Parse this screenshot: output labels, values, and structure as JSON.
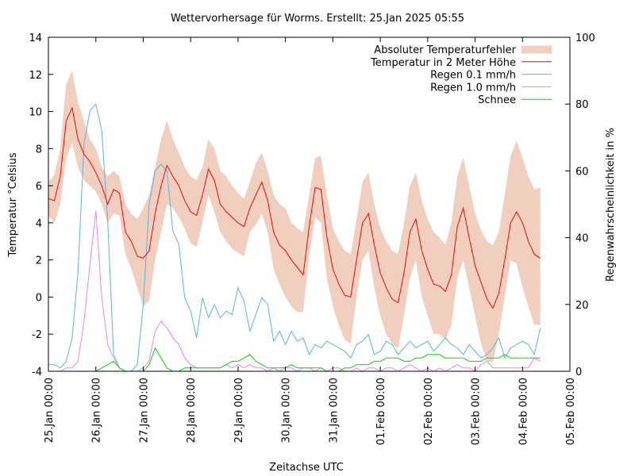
{
  "chart_data": {
    "type": "line",
    "title": "Wettervorhersage für Worms. Erstellt: 25.Jan 2025 05:55",
    "xlabel": "Zeitachse UTC",
    "ylabel": "Temperatur °Celsius",
    "y2label": "Regenwahrscheinlichkeit in %",
    "x_unit": "hours since 25.Jan 00:00 UTC",
    "xlim": [
      0,
      264
    ],
    "ylim": [
      -4,
      14
    ],
    "y2lim": [
      0,
      100
    ],
    "grid": false,
    "legend_position": "top-right",
    "x_ticks": [
      {
        "value": 0,
        "label": "25.Jan 00:00"
      },
      {
        "value": 24,
        "label": "26.Jan 00:00"
      },
      {
        "value": 48,
        "label": "27.Jan 00:00"
      },
      {
        "value": 72,
        "label": "28.Jan 00:00"
      },
      {
        "value": 96,
        "label": "29.Jan 00:00"
      },
      {
        "value": 120,
        "label": "30.Jan 00:00"
      },
      {
        "value": 144,
        "label": "31.Jan 00:00"
      },
      {
        "value": 168,
        "label": "01.Feb 00:00"
      },
      {
        "value": 192,
        "label": "02.Feb 00:00"
      },
      {
        "value": 216,
        "label": "03.Feb 00:00"
      },
      {
        "value": 240,
        "label": "04.Feb 00:00"
      },
      {
        "value": 264,
        "label": "05.Feb 00:00"
      }
    ],
    "y_ticks": [
      -4,
      -2,
      0,
      2,
      4,
      6,
      8,
      10,
      12,
      14
    ],
    "y2_ticks": [
      0,
      20,
      40,
      60,
      80,
      100
    ],
    "legend": [
      {
        "name": "Absoluter Temperaturfehler",
        "color": "#f0cfbf",
        "kind": "band"
      },
      {
        "name": "Temperatur in 2 Meter Höhe",
        "color": "#ff0000",
        "kind": "line"
      },
      {
        "name": "Regen 0.1 mm/h",
        "color": "#56b4e9",
        "kind": "line"
      },
      {
        "name": "Regen 1.0 mm/h",
        "color": "#ee82ee",
        "kind": "line"
      },
      {
        "name": "Schnee",
        "color": "#00dd00",
        "kind": "line"
      }
    ],
    "x": [
      0,
      3,
      6,
      9,
      12,
      15,
      18,
      21,
      24,
      27,
      30,
      33,
      36,
      39,
      42,
      45,
      48,
      51,
      54,
      57,
      60,
      63,
      66,
      69,
      72,
      75,
      78,
      81,
      84,
      87,
      90,
      93,
      96,
      99,
      102,
      105,
      108,
      111,
      114,
      117,
      120,
      123,
      126,
      129,
      132,
      135,
      138,
      141,
      144,
      147,
      150,
      153,
      156,
      159,
      162,
      165,
      168,
      171,
      174,
      177,
      180,
      183,
      186,
      189,
      192,
      195,
      198,
      201,
      204,
      207,
      210,
      213,
      216,
      219,
      222,
      225,
      228,
      231,
      234,
      237,
      240,
      243,
      246,
      249,
      240
    ],
    "series": [
      {
        "name": "Temperatur in 2 Meter Höhe",
        "axis": "y",
        "values": [
          5.3,
          5.2,
          6.5,
          9.5,
          10.2,
          8.5,
          7.7,
          7.3,
          6.7,
          6.0,
          5.0,
          5.8,
          5.6,
          3.5,
          3.0,
          2.2,
          2.1,
          2.5,
          4.5,
          6.0,
          7.1,
          6.5,
          6.0,
          5.2,
          4.6,
          4.4,
          5.5,
          6.9,
          6.3,
          5.0,
          4.6,
          4.3,
          4.0,
          3.8,
          4.8,
          5.5,
          6.2,
          5.2,
          3.5,
          2.8,
          2.5,
          2.0,
          1.6,
          1.2,
          3.8,
          5.9,
          5.8,
          3.2,
          1.5,
          0.7,
          0.1,
          0.0,
          2.0,
          4.0,
          4.5,
          2.8,
          1.3,
          0.5,
          -0.1,
          -0.3,
          1.3,
          3.5,
          4.2,
          2.5,
          1.5,
          0.7,
          0.6,
          0.3,
          1.2,
          3.8,
          4.8,
          3.2,
          1.7,
          0.8,
          -0.1,
          -0.6,
          0.2,
          2.0,
          4.0,
          4.6,
          4.0,
          3.0,
          2.3,
          2.1
        ]
      },
      {
        "name": "Absoluter Temperaturfehler (obere Grenze)",
        "axis": "y",
        "values": [
          6.2,
          6.6,
          8.0,
          11.5,
          12.2,
          10.5,
          9.5,
          8.5,
          8.0,
          7.0,
          6.5,
          6.8,
          6.5,
          5.0,
          4.5,
          4.2,
          4.8,
          5.5,
          7.0,
          8.5,
          9.5,
          8.5,
          7.8,
          7.0,
          6.5,
          6.3,
          7.0,
          8.5,
          8.0,
          6.8,
          6.5,
          6.0,
          5.6,
          5.3,
          6.2,
          7.2,
          7.8,
          6.8,
          5.5,
          5.0,
          4.8,
          4.0,
          3.7,
          3.5,
          5.5,
          7.5,
          7.6,
          5.5,
          3.7,
          3.0,
          2.5,
          2.3,
          4.2,
          6.2,
          6.7,
          5.0,
          3.7,
          3.0,
          2.5,
          2.3,
          4.0,
          6.0,
          6.7,
          5.2,
          4.2,
          3.5,
          3.2,
          2.8,
          4.0,
          6.5,
          7.5,
          6.0,
          4.5,
          3.6,
          3.0,
          2.8,
          3.5,
          5.5,
          7.6,
          8.4,
          7.5,
          6.5,
          5.8,
          5.9
        ]
      },
      {
        "name": "Absoluter Temperaturfehler (untere Grenze)",
        "axis": "y",
        "values": [
          4.4,
          4.0,
          5.0,
          7.5,
          8.3,
          7.0,
          6.3,
          6.0,
          5.7,
          5.0,
          4.0,
          4.5,
          4.4,
          2.3,
          1.5,
          0.5,
          -0.5,
          -0.2,
          2.0,
          3.5,
          5.0,
          4.8,
          4.3,
          3.7,
          2.9,
          2.7,
          4.0,
          5.5,
          4.6,
          3.5,
          3.0,
          2.6,
          2.4,
          2.2,
          3.5,
          3.9,
          4.5,
          3.5,
          1.5,
          0.7,
          0.0,
          -0.5,
          -0.8,
          -0.8,
          2.2,
          4.3,
          4.0,
          1.0,
          -0.5,
          -1.5,
          -2.3,
          -2.5,
          0.0,
          2.0,
          2.5,
          0.5,
          -1.0,
          -2.0,
          -2.5,
          -2.8,
          -1.0,
          1.0,
          2.0,
          0.0,
          -1.0,
          -2.0,
          -2.0,
          -2.3,
          -1.5,
          1.0,
          2.0,
          0.5,
          -1.0,
          -2.5,
          -3.5,
          -3.5,
          -2.0,
          0.0,
          2.0,
          1.8,
          0.5,
          -0.5,
          -1.5,
          -1.5
        ]
      },
      {
        "name": "Regen 0.1 mm/h",
        "axis": "y2",
        "values": [
          2,
          2,
          1,
          3,
          10,
          30,
          68,
          78,
          80,
          72,
          45,
          5,
          1,
          0,
          0,
          2,
          20,
          50,
          60,
          62,
          60,
          42,
          38,
          22,
          18,
          10,
          22,
          16,
          20,
          16,
          18,
          17,
          25,
          21,
          12,
          17,
          22,
          20,
          9,
          12,
          8,
          12,
          9,
          10,
          5,
          8,
          7,
          9,
          8,
          7,
          6,
          4,
          8,
          9,
          11,
          5,
          6,
          9,
          8,
          5,
          7,
          9,
          7,
          8,
          9,
          6,
          8,
          10,
          8,
          7,
          5,
          8,
          6,
          4,
          5,
          7,
          10,
          4,
          7,
          8,
          9,
          8,
          5,
          13
        ]
      },
      {
        "name": "Regen 1.0 mm/h",
        "axis": "y2",
        "values": [
          0,
          0,
          0,
          1,
          1,
          3,
          15,
          32,
          48,
          22,
          8,
          4,
          1,
          0,
          0,
          0,
          1,
          3,
          12,
          15,
          13,
          10,
          8,
          4,
          2,
          1,
          1,
          1,
          1,
          1,
          2,
          1,
          2,
          1,
          2,
          1,
          1,
          0,
          1,
          0,
          1,
          1,
          0,
          1,
          1,
          0,
          1,
          0,
          1,
          1,
          0,
          0,
          1,
          0,
          1,
          1,
          0,
          1,
          1,
          0,
          1,
          2,
          1,
          0,
          1,
          0,
          1,
          0,
          1,
          2,
          1,
          1,
          0,
          2,
          3,
          1,
          1,
          1,
          1,
          1,
          1,
          1,
          4,
          3
        ]
      },
      {
        "name": "Schnee",
        "axis": "y2",
        "values": [
          0,
          0,
          0,
          0,
          0,
          0,
          0,
          0,
          0,
          1,
          2,
          3,
          1,
          0,
          0,
          0,
          0,
          2,
          7,
          4,
          1,
          0,
          0,
          1,
          1,
          1,
          1,
          1,
          1,
          1,
          2,
          3,
          3,
          4,
          5,
          3,
          2,
          1,
          1,
          1,
          1,
          2,
          1,
          1,
          1,
          1,
          1,
          0,
          0,
          0,
          1,
          1,
          2,
          2,
          2,
          3,
          3,
          4,
          4,
          4,
          3,
          3,
          4,
          4,
          5,
          5,
          5,
          4,
          4,
          4,
          4,
          3,
          3,
          3,
          4,
          4,
          4,
          5,
          4,
          4,
          4,
          4,
          4,
          4
        ]
      }
    ]
  }
}
